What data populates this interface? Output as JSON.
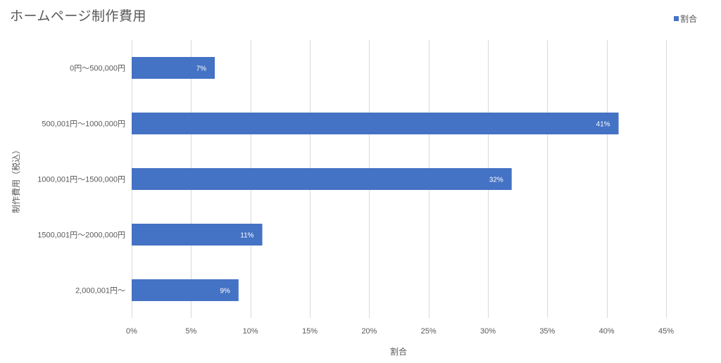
{
  "chart_data": {
    "type": "bar",
    "orientation": "horizontal",
    "title": "ホームページ制作費用",
    "xlabel": "割合",
    "ylabel": "制作費用（税込）",
    "categories": [
      "0円～500,000円",
      "500,001円～1000,000円",
      "1000,001円～1500,000円",
      "1500,001円～2000,000円",
      "2,000,001円～"
    ],
    "series": [
      {
        "name": "割合",
        "values": [
          7,
          41,
          32,
          11,
          9
        ],
        "labels": [
          "7%",
          "41%",
          "32%",
          "11%",
          "9%"
        ]
      }
    ],
    "xlim": [
      0,
      45
    ],
    "xticks": [
      {
        "value": 0,
        "label": "0%"
      },
      {
        "value": 5,
        "label": "5%"
      },
      {
        "value": 10,
        "label": "10%"
      },
      {
        "value": 15,
        "label": "15%"
      },
      {
        "value": 20,
        "label": "20%"
      },
      {
        "value": 25,
        "label": "25%"
      },
      {
        "value": 30,
        "label": "30%"
      },
      {
        "value": 35,
        "label": "35%"
      },
      {
        "value": 40,
        "label": "40%"
      },
      {
        "value": 45,
        "label": "45%"
      }
    ],
    "grid": true,
    "legend": "top-right",
    "colors": {
      "bar": "#4472C4",
      "gridline": "#D9D9D9"
    }
  }
}
